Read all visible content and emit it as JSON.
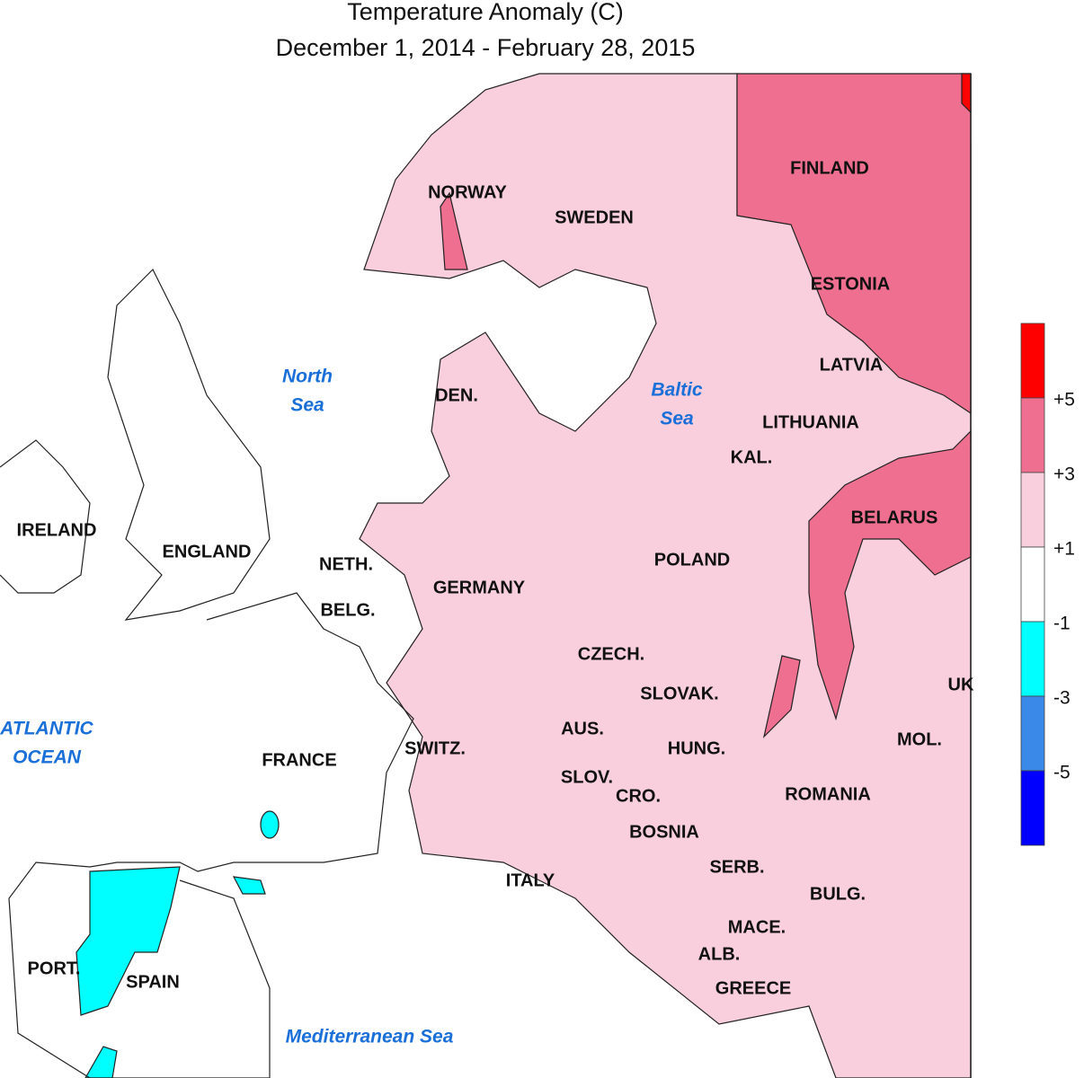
{
  "header": {
    "title": "Temperature Anomaly (C)",
    "subtitle": "December 1, 2014 - February 28, 2015"
  },
  "labels": [
    "NORWAY",
    "SWEDEN",
    "FINLAND",
    "ESTONIA",
    "LATVIA",
    "LITHUANIA",
    "DEN.",
    "KAL.",
    "BELARUS",
    "IRELAND",
    "ENGLAND",
    "NETH.",
    "GERMANY",
    "POLAND",
    "BELG.",
    "CZECH.",
    "SLOVAK.",
    "UK",
    "AUS.",
    "MOL.",
    "SWITZ.",
    "FRANCE",
    "HUNG.",
    "SLOV.",
    "CRO.",
    "ROMANIA",
    "BOSNIA",
    "SERB.",
    "ITALY",
    "BULG.",
    "MACE.",
    "ALB.",
    "PORT.",
    "SPAIN",
    "GREECE"
  ],
  "seas": [
    [
      "North",
      "Sea"
    ],
    [
      "Baltic",
      "Sea"
    ],
    [
      "ATLANTIC",
      "OCEAN"
    ],
    [
      "Mediterranean Sea"
    ]
  ],
  "colorbar": {
    "colors": [
      "#ff0000",
      "#ee6f8f",
      "#f9cfdd",
      "#ffffff",
      "#00ffff",
      "#3a88e8",
      "#0000ff"
    ],
    "labels": [
      "+5",
      "+3",
      "+1",
      "-1",
      "-3",
      "-5"
    ]
  }
}
